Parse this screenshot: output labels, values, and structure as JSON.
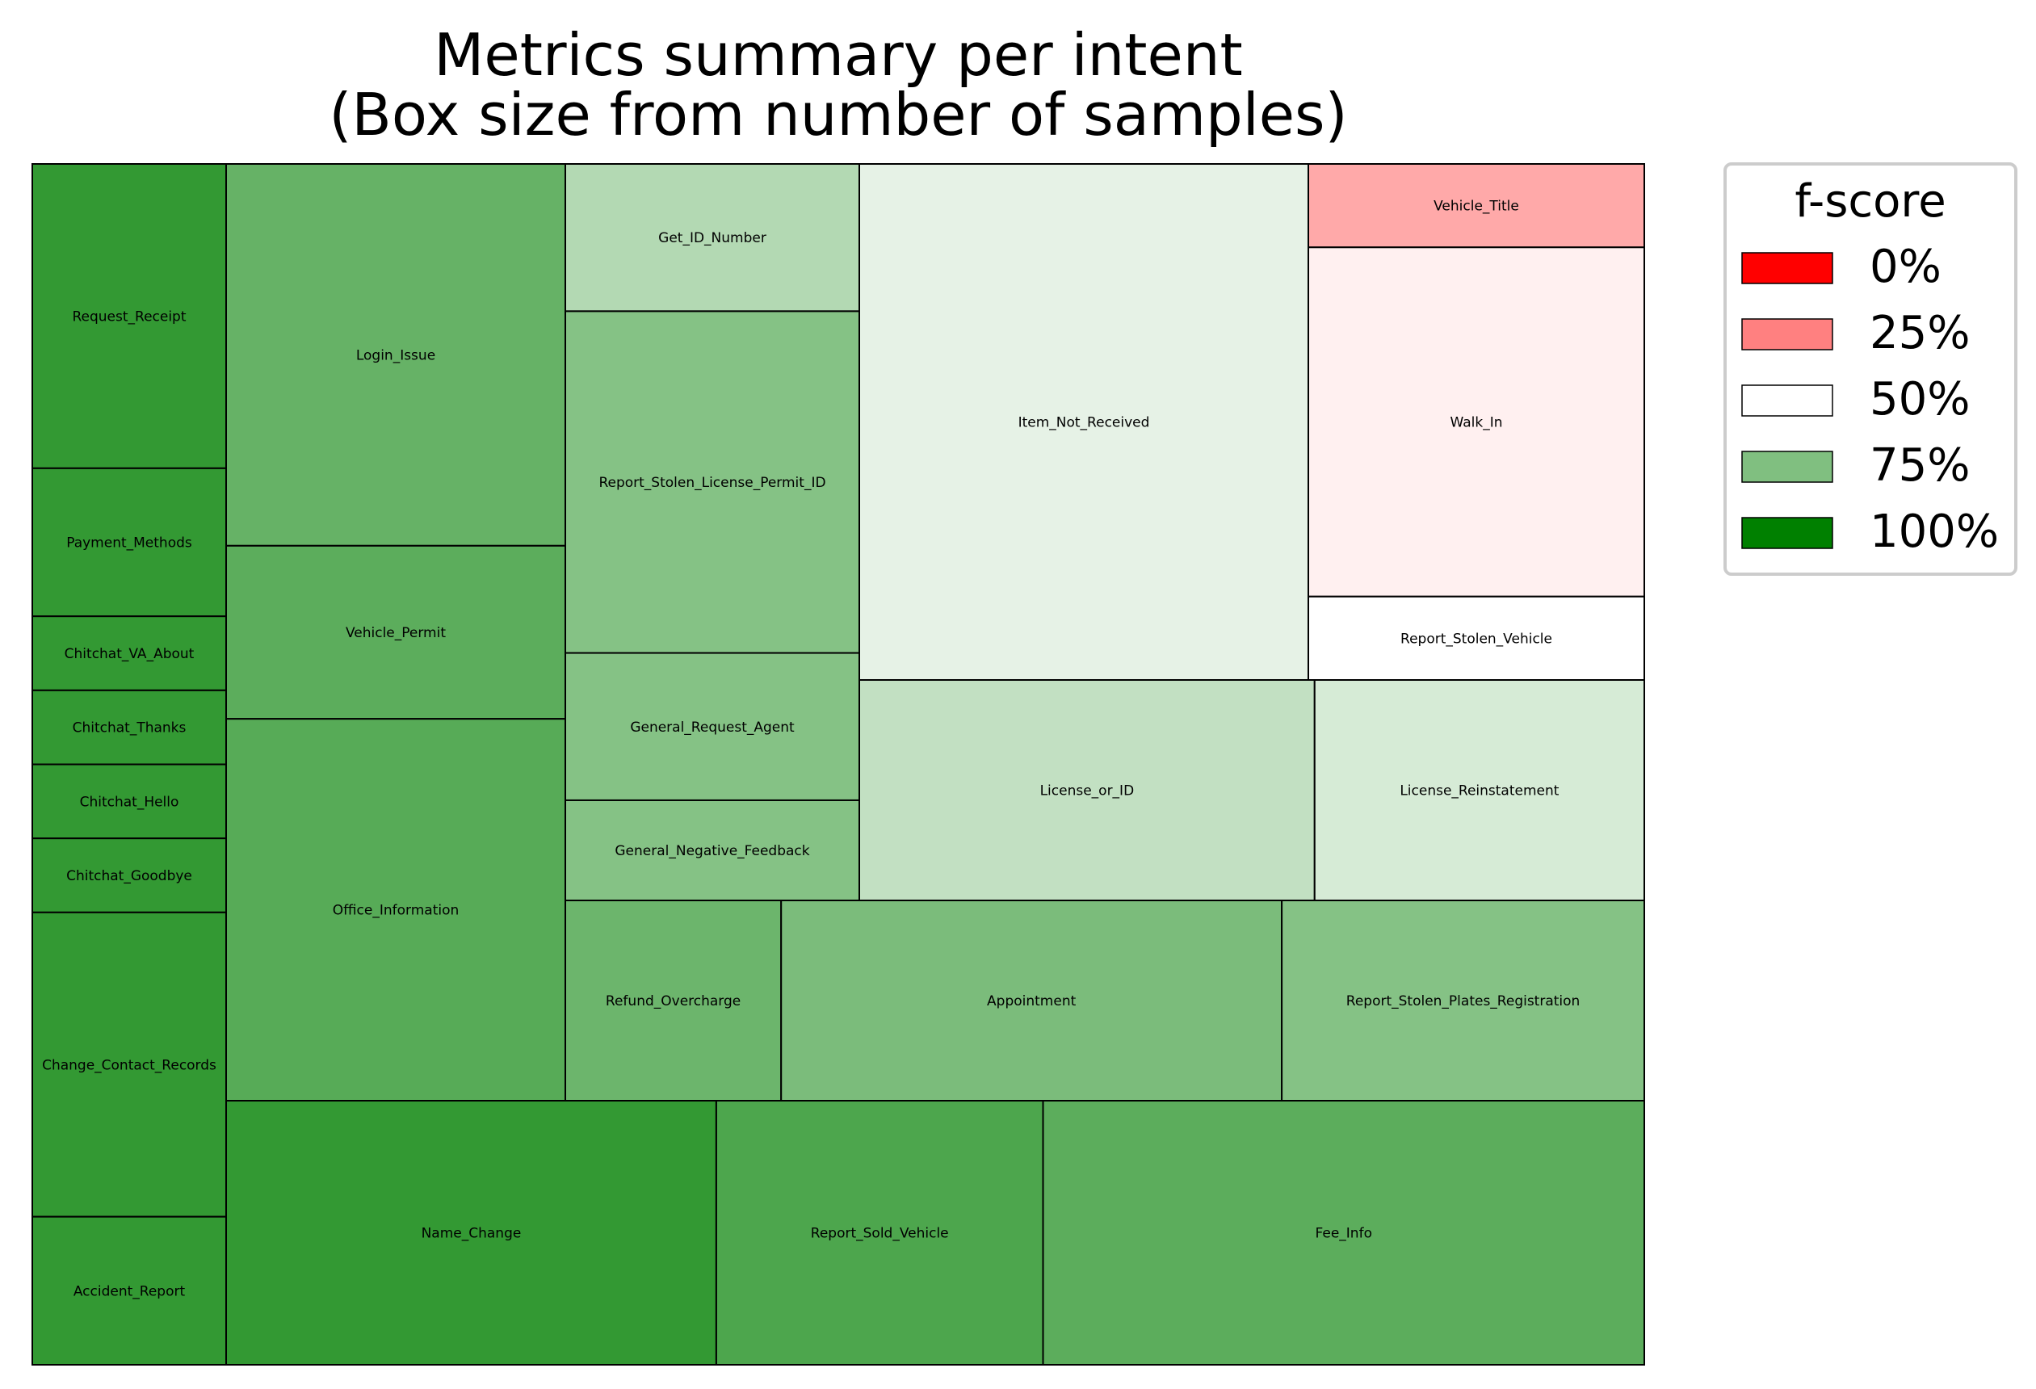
{
  "chart_data": {
    "type": "treemap",
    "title": [
      "Metrics summary per intent",
      "(Box size from number of samples)"
    ],
    "size_metric": "number of samples",
    "color_metric": "f-score",
    "legend": {
      "title": "f-score",
      "placement": "right",
      "entries": [
        {
          "label": "0%",
          "value": 0,
          "color": "#ff0000"
        },
        {
          "label": "25%",
          "value": 0.25,
          "color": "#ff8080"
        },
        {
          "label": "50%",
          "value": 0.5,
          "color": "#ffffff"
        },
        {
          "label": "75%",
          "value": 0.75,
          "color": "#80bf80"
        },
        {
          "label": "100%",
          "value": 1.0,
          "color": "#008000"
        }
      ]
    },
    "layout_columns": [
      {
        "cells": [
          "Request_Receipt",
          "Payment_Methods",
          "Chitchat_VA_About",
          "Chitchat_Thanks",
          "Chitchat_Hello",
          "Chitchat_Goodbye",
          "Change_Contact_Records",
          "Accident_Report"
        ]
      },
      {
        "cells": [
          "Login_Issue",
          "Vehicle_Permit",
          "Office_Information"
        ]
      },
      {
        "cells": [
          "Get_ID_Number",
          "Report_Stolen_License_Permit_ID",
          "General_Request_Agent",
          "General_Negative_Feedback"
        ]
      },
      {
        "cells": [
          "Item_Not_Received"
        ]
      },
      {
        "cells": [
          "Vehicle_Title",
          "Walk_In",
          "Report_Stolen_Vehicle"
        ]
      },
      {
        "cells": [
          "License_or_ID",
          "License_Reinstatement"
        ]
      },
      {
        "cells": [
          "Refund_Overcharge",
          "Appointment",
          "Report_Stolen_Plates_Registration"
        ]
      },
      {
        "cells": [
          "Name_Change",
          "Report_Sold_Vehicle",
          "Fee_Info"
        ]
      }
    ],
    "items": [
      {
        "name": "Request_Receipt",
        "samples": 37,
        "fscore": 0.9
      },
      {
        "name": "Payment_Methods",
        "samples": 18,
        "fscore": 0.9
      },
      {
        "name": "Chitchat_VA_About",
        "samples": 9,
        "fscore": 0.9
      },
      {
        "name": "Chitchat_Thanks",
        "samples": 9,
        "fscore": 0.9
      },
      {
        "name": "Chitchat_Hello",
        "samples": 9,
        "fscore": 0.9
      },
      {
        "name": "Chitchat_Goodbye",
        "samples": 9,
        "fscore": 0.9
      },
      {
        "name": "Change_Contact_Records",
        "samples": 37,
        "fscore": 0.9
      },
      {
        "name": "Accident_Report",
        "samples": 18,
        "fscore": 0.9
      },
      {
        "name": "Login_Issue",
        "samples": 75,
        "fscore": 0.8
      },
      {
        "name": "Vehicle_Permit",
        "samples": 34,
        "fscore": 0.82
      },
      {
        "name": "Office_Information",
        "samples": 75,
        "fscore": 0.83
      },
      {
        "name": "Get_ID_Number",
        "samples": 25,
        "fscore": 0.65
      },
      {
        "name": "Report_Stolen_License_Permit_ID",
        "samples": 58,
        "fscore": 0.74
      },
      {
        "name": "General_Request_Agent",
        "samples": 25,
        "fscore": 0.74
      },
      {
        "name": "General_Negative_Feedback",
        "samples": 17,
        "fscore": 0.74
      },
      {
        "name": "Item_Not_Received",
        "samples": 134,
        "fscore": 0.55
      },
      {
        "name": "Vehicle_Title",
        "samples": 16,
        "fscore": 0.33
      },
      {
        "name": "Walk_In",
        "samples": 67,
        "fscore": 0.47
      },
      {
        "name": "Report_Stolen_Vehicle",
        "samples": 16,
        "fscore": 0.5
      },
      {
        "name": "License_or_ID",
        "samples": 58,
        "fscore": 0.62
      },
      {
        "name": "License_Reinstatement",
        "samples": 42,
        "fscore": 0.58
      },
      {
        "name": "Refund_Overcharge",
        "samples": 25,
        "fscore": 0.79
      },
      {
        "name": "Appointment",
        "samples": 58,
        "fscore": 0.76
      },
      {
        "name": "Report_Stolen_Plates_Registration",
        "samples": 42,
        "fscore": 0.74
      },
      {
        "name": "Name_Change",
        "samples": 75,
        "fscore": 0.9
      },
      {
        "name": "Report_Sold_Vehicle",
        "samples": 50,
        "fscore": 0.85
      },
      {
        "name": "Fee_Info",
        "samples": 92,
        "fscore": 0.82
      }
    ]
  }
}
